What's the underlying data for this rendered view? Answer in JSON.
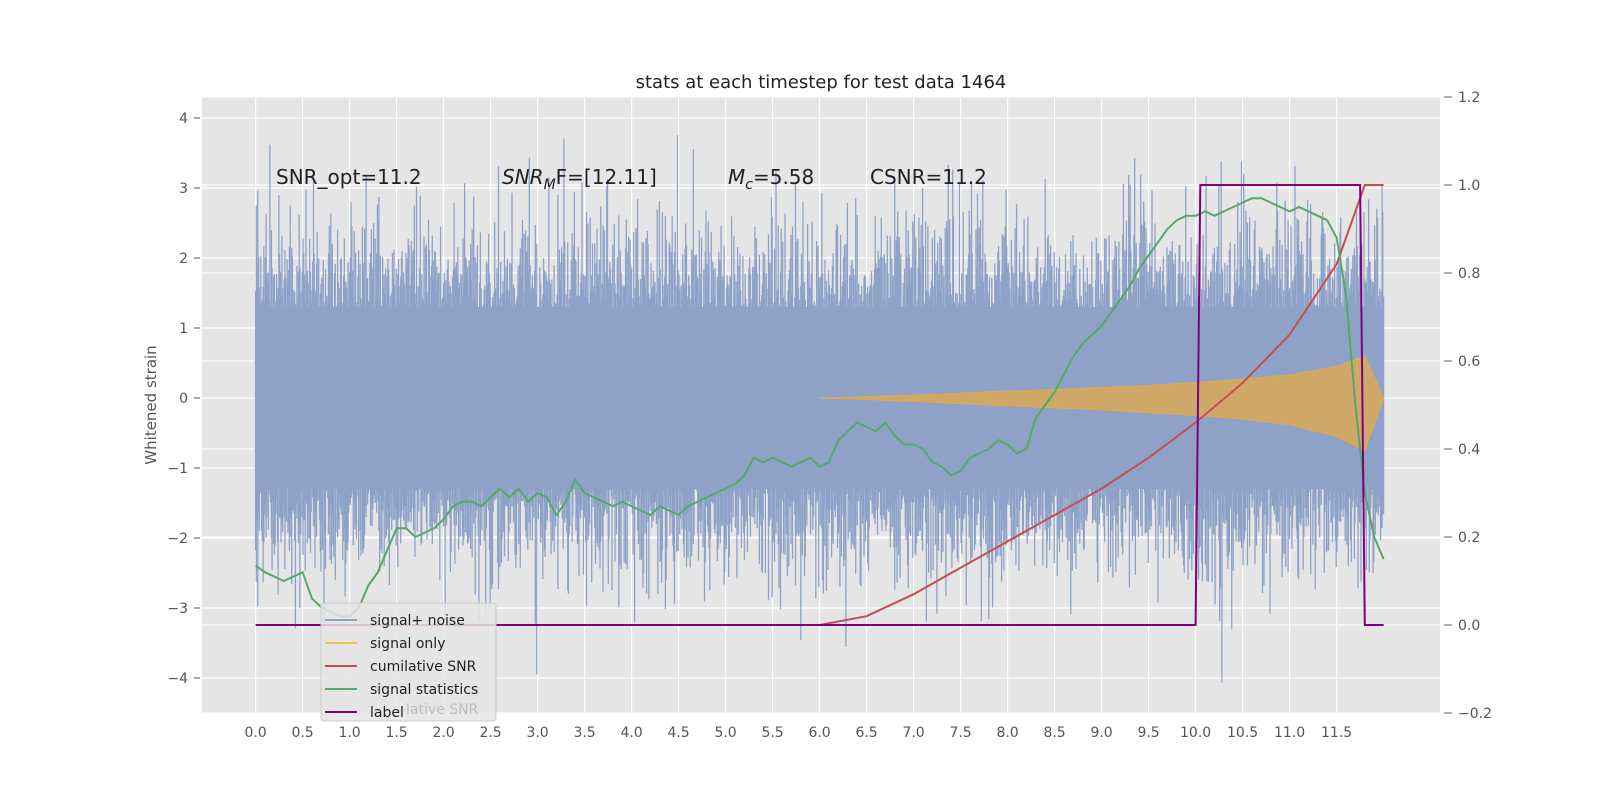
{
  "chart_data": {
    "type": "line",
    "title": "stats at each timestep for test data 1464",
    "ylabel": "Whitened strain",
    "ylabel_right": "",
    "xlim": [
      -0.57,
      12.6
    ],
    "ylim": [
      -4.5,
      4.3
    ],
    "ylim_right": [
      -0.2,
      1.2
    ],
    "grid": true,
    "x_ticks": [
      "0.0",
      "0.5",
      "1.0",
      "1.5",
      "2.0",
      "2.5",
      "3.0",
      "3.5",
      "4.0",
      "4.5",
      "5.0",
      "5.5",
      "6.0",
      "6.5",
      "7.0",
      "7.5",
      "8.0",
      "8.5",
      "9.0",
      "9.5",
      "10.0",
      "10.5",
      "11.0",
      "11.5"
    ],
    "y_ticks": [
      "−4",
      "−3",
      "−2",
      "−1",
      "0",
      "1",
      "2",
      "3",
      "4"
    ],
    "y_ticks_right": [
      "−0.2",
      "0.0",
      "0.2",
      "0.4",
      "0.6",
      "0.8",
      "1.0",
      "1.2"
    ],
    "annotations": {
      "snr_opt": "SNR_opt=11.2",
      "snr_mf_base": "SNR",
      "snr_mf_sub": "M",
      "snr_mf_rest": "F=[12.11]",
      "mc_base": "M",
      "mc_sub": "c",
      "mc_rest": "=5.58",
      "csnr": "CSNR=11.2"
    },
    "legend": {
      "placement": "lower-left",
      "entries": [
        "signal+ noise",
        "signal only",
        "cumilative SNR",
        "signal statistics",
        "label"
      ],
      "ghost_text": "lative SNR"
    },
    "colors": {
      "noise": "#8ea2c8",
      "signal": "#e0a94e",
      "cumulative_snr": "#c44e52",
      "statistics": "#55a868",
      "label": "#800080",
      "plot_bg": "#e5e5e5",
      "grid": "#ffffff"
    },
    "noise": {
      "x_start": 0.0,
      "x_end": 12.0,
      "typical_envelope": [
        -2.0,
        2.3
      ],
      "max": 3.95,
      "min": -4.1
    },
    "signal_envelope": {
      "x": [
        6.0,
        6.5,
        7.0,
        7.5,
        8.0,
        8.5,
        9.0,
        9.5,
        10.0,
        10.5,
        11.0,
        11.5,
        11.8,
        12.0
      ],
      "upper": [
        0.0,
        0.02,
        0.04,
        0.07,
        0.1,
        0.12,
        0.15,
        0.18,
        0.22,
        0.27,
        0.33,
        0.45,
        0.6,
        0.0
      ],
      "lower": [
        0.0,
        -0.02,
        -0.05,
        -0.08,
        -0.11,
        -0.14,
        -0.17,
        -0.21,
        -0.25,
        -0.3,
        -0.38,
        -0.55,
        -0.75,
        0.0
      ]
    },
    "cumulative_snr": {
      "x": [
        0.0,
        3.0,
        6.0,
        6.5,
        7.0,
        7.5,
        8.0,
        8.5,
        9.0,
        9.5,
        10.0,
        10.5,
        11.0,
        11.5,
        11.8,
        12.0
      ],
      "y": [
        0.0,
        0.0,
        0.0,
        0.02,
        0.07,
        0.13,
        0.19,
        0.25,
        0.31,
        0.38,
        0.46,
        0.55,
        0.66,
        0.82,
        1.0,
        1.0
      ]
    },
    "signal_statistics": {
      "x": [
        0.0,
        0.1,
        0.2,
        0.3,
        0.4,
        0.5,
        0.6,
        0.7,
        0.8,
        0.9,
        1.0,
        1.1,
        1.2,
        1.3,
        1.4,
        1.5,
        1.6,
        1.7,
        1.8,
        1.9,
        2.0,
        2.1,
        2.2,
        2.3,
        2.4,
        2.5,
        2.6,
        2.7,
        2.8,
        2.9,
        3.0,
        3.1,
        3.2,
        3.3,
        3.4,
        3.5,
        3.6,
        3.7,
        3.8,
        3.9,
        4.0,
        4.1,
        4.2,
        4.3,
        4.4,
        4.5,
        4.6,
        4.7,
        4.8,
        4.9,
        5.0,
        5.1,
        5.2,
        5.3,
        5.4,
        5.5,
        5.6,
        5.7,
        5.8,
        5.9,
        6.0,
        6.1,
        6.2,
        6.3,
        6.4,
        6.5,
        6.6,
        6.7,
        6.8,
        6.9,
        7.0,
        7.1,
        7.2,
        7.3,
        7.4,
        7.5,
        7.6,
        7.7,
        7.8,
        7.9,
        8.0,
        8.1,
        8.2,
        8.3,
        8.4,
        8.5,
        8.6,
        8.7,
        8.8,
        8.9,
        9.0,
        9.1,
        9.2,
        9.3,
        9.4,
        9.5,
        9.6,
        9.7,
        9.8,
        9.9,
        10.0,
        10.1,
        10.2,
        10.3,
        10.4,
        10.5,
        10.6,
        10.7,
        10.8,
        10.9,
        11.0,
        11.1,
        11.2,
        11.3,
        11.4,
        11.5,
        11.6,
        11.7,
        11.8,
        11.9,
        12.0
      ],
      "y": [
        0.135,
        0.12,
        0.11,
        0.1,
        0.11,
        0.12,
        0.06,
        0.04,
        0.03,
        0.02,
        0.02,
        0.04,
        0.09,
        0.12,
        0.17,
        0.22,
        0.22,
        0.2,
        0.21,
        0.22,
        0.24,
        0.27,
        0.28,
        0.28,
        0.27,
        0.29,
        0.31,
        0.29,
        0.31,
        0.28,
        0.3,
        0.29,
        0.25,
        0.28,
        0.33,
        0.3,
        0.29,
        0.28,
        0.27,
        0.28,
        0.27,
        0.26,
        0.25,
        0.27,
        0.26,
        0.25,
        0.27,
        0.28,
        0.29,
        0.3,
        0.31,
        0.32,
        0.34,
        0.38,
        0.37,
        0.38,
        0.37,
        0.36,
        0.37,
        0.38,
        0.36,
        0.37,
        0.42,
        0.44,
        0.46,
        0.45,
        0.44,
        0.46,
        0.43,
        0.41,
        0.41,
        0.4,
        0.37,
        0.36,
        0.34,
        0.35,
        0.38,
        0.39,
        0.4,
        0.42,
        0.41,
        0.39,
        0.4,
        0.47,
        0.5,
        0.53,
        0.57,
        0.61,
        0.64,
        0.66,
        0.68,
        0.71,
        0.74,
        0.77,
        0.81,
        0.84,
        0.87,
        0.9,
        0.92,
        0.93,
        0.93,
        0.94,
        0.93,
        0.94,
        0.95,
        0.96,
        0.97,
        0.97,
        0.96,
        0.95,
        0.94,
        0.95,
        0.94,
        0.93,
        0.92,
        0.88,
        0.75,
        0.5,
        0.3,
        0.2,
        0.15
      ]
    },
    "label": {
      "x": [
        0.0,
        10.0,
        10.05,
        11.75,
        11.8,
        12.0
      ],
      "y": [
        0.0,
        0.0,
        1.0,
        1.0,
        0.0,
        0.0
      ]
    }
  }
}
